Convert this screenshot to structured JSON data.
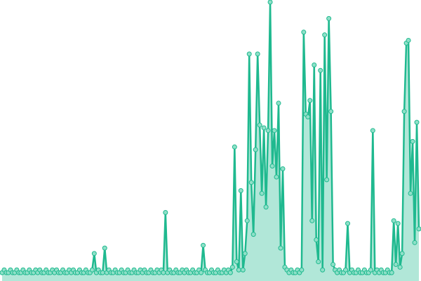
{
  "chart_data": {
    "type": "area",
    "color": "#1fb98f",
    "values": [
      1,
      2,
      1,
      1,
      2,
      1,
      1,
      2,
      1,
      1,
      2,
      1,
      1,
      2,
      1,
      1,
      2,
      1,
      2,
      1,
      1,
      2,
      1,
      1,
      2,
      1,
      2,
      1,
      1,
      2,
      1,
      1,
      2,
      1,
      2,
      1,
      1,
      2,
      1,
      1,
      2,
      1,
      1,
      2,
      8,
      1,
      2,
      1,
      1,
      10,
      1,
      2,
      1,
      1,
      2,
      1,
      1,
      2,
      1,
      1,
      2,
      1,
      1,
      2,
      1,
      1,
      2,
      1,
      2,
      1,
      1,
      2,
      1,
      1,
      2,
      1,
      2,
      1,
      23,
      1,
      2,
      1,
      1,
      2,
      1,
      1,
      2,
      1,
      2,
      1,
      1,
      2,
      1,
      1,
      2,
      1,
      11,
      2,
      1,
      1,
      2,
      1,
      1,
      2,
      1,
      1,
      2,
      1,
      2,
      1,
      3,
      47,
      5,
      2,
      31,
      2,
      8,
      20,
      81,
      34,
      15,
      46,
      81,
      55,
      30,
      54,
      25,
      53,
      100,
      40,
      53,
      36,
      63,
      10,
      39,
      3,
      2,
      1,
      2,
      1,
      1,
      2,
      1,
      2,
      89,
      59,
      58,
      64,
      20,
      77,
      13,
      5,
      75,
      2,
      88,
      35,
      94,
      60,
      4,
      2,
      1,
      2,
      1,
      1,
      2,
      19,
      1,
      2,
      1,
      1,
      2,
      1,
      1,
      2,
      1,
      1,
      2,
      53,
      1,
      2,
      1,
      2,
      1,
      1,
      2,
      1,
      1,
      20,
      4,
      19,
      3,
      8,
      60,
      85,
      86,
      30,
      49,
      12,
      56,
      17
    ]
  }
}
